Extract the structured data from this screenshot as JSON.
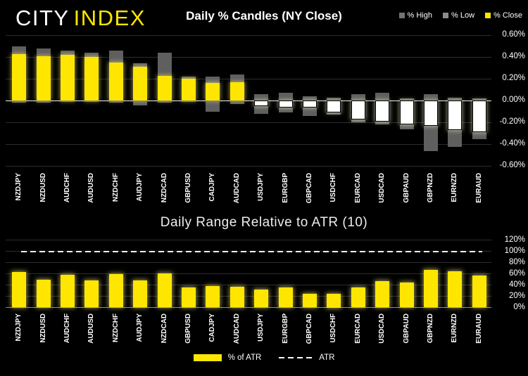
{
  "logo": {
    "city": "CITY",
    "index": "INDEX"
  },
  "top_legend": [
    {
      "label": "% High",
      "color": "#737373"
    },
    {
      "label": "% Low",
      "color": "#8c8c8c"
    },
    {
      "label": "% Close",
      "color": "#ffe600"
    }
  ],
  "bottom_legend": {
    "pct_of_atr": "% of ATR",
    "atr": "ATR"
  },
  "colors": {
    "background": "#000000",
    "bar_yellow": "#ffe600",
    "bar_gray": "#5f5f5f",
    "bar_white": "#ffffff",
    "gridline": "#2d2d2d",
    "zero_line": "#ededed",
    "text": "#ffffff"
  },
  "chart_data": [
    {
      "type": "bar",
      "name": "daily-pct-candles",
      "title": "Daily % Candles (NY Close)",
      "legend_position": "top-right",
      "categories": [
        "NZDJPY",
        "NZDUSD",
        "AUDCHF",
        "AUDUSD",
        "NZDCHF",
        "AUDJPY",
        "NZDCAD",
        "GBPUSD",
        "CADJPY",
        "AUDCAD",
        "USDJPY",
        "EURGBP",
        "GBPCAD",
        "USDCHF",
        "EURCAD",
        "USDCAD",
        "GBPAUD",
        "GBPNZD",
        "EURNZD",
        "EURAUD"
      ],
      "series": [
        {
          "name": "% High",
          "values": [
            0.5,
            0.48,
            0.46,
            0.44,
            0.46,
            0.34,
            0.44,
            0.22,
            0.22,
            0.24,
            0.06,
            0.07,
            0.04,
            0.03,
            0.06,
            0.07,
            0.02,
            0.06,
            0.03,
            0.02
          ]
        },
        {
          "name": "% Low",
          "values": [
            -0.02,
            -0.02,
            -0.01,
            -0.01,
            -0.02,
            -0.04,
            -0.02,
            -0.01,
            -0.1,
            -0.03,
            -0.12,
            -0.11,
            -0.14,
            -0.13,
            -0.2,
            -0.22,
            -0.26,
            -0.46,
            -0.42,
            -0.35
          ]
        },
        {
          "name": "% Close",
          "values": [
            0.43,
            0.41,
            0.42,
            0.4,
            0.35,
            0.31,
            0.23,
            0.2,
            0.16,
            0.17,
            -0.05,
            -0.06,
            -0.06,
            -0.11,
            -0.17,
            -0.19,
            -0.22,
            -0.23,
            -0.27,
            -0.29
          ]
        }
      ],
      "y_ticks": [
        "0.60%",
        "0.40%",
        "0.20%",
        "0.00%",
        "-0.20%",
        "-0.40%",
        "-0.60%"
      ],
      "ylim": [
        -0.6,
        0.6
      ],
      "grid": true
    },
    {
      "type": "bar",
      "name": "daily-range-relative-to-atr",
      "title": "Daily Range Relative to ATR (10)",
      "legend_position": "bottom-center",
      "categories": [
        "NZDJPY",
        "NZDUSD",
        "AUDCHF",
        "AUDUSD",
        "NZDCHF",
        "AUDJPY",
        "NZDCAD",
        "GBPUSD",
        "CADJPY",
        "AUDCAD",
        "USDJPY",
        "EURGBP",
        "GBPCAD",
        "USDCHF",
        "EURCAD",
        "USDCAD",
        "GBPAUD",
        "GBPNZD",
        "EURNZD",
        "EURAUD"
      ],
      "series": [
        {
          "name": "% of ATR",
          "values": [
            63,
            49,
            58,
            48,
            59,
            48,
            61,
            36,
            38,
            37,
            32,
            36,
            24,
            25,
            36,
            47,
            44,
            67,
            64,
            57
          ]
        }
      ],
      "reference_line": {
        "name": "ATR",
        "value": 100
      },
      "y_ticks": [
        "120%",
        "100%",
        "80%",
        "60%",
        "40%",
        "20%",
        "0%"
      ],
      "ylim": [
        0,
        120
      ],
      "grid": true
    }
  ]
}
